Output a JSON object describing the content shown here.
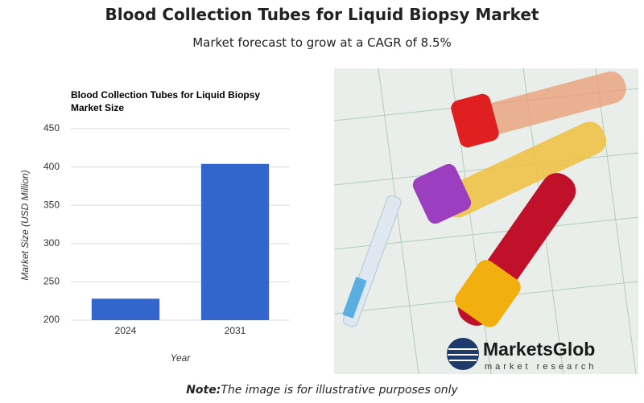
{
  "header": {
    "title": "Blood Collection Tubes for Liquid Biopsy Market",
    "subtitle": "Market forecast to grow at a CAGR of 8.5%"
  },
  "chart_data": {
    "type": "bar",
    "title": "Blood Collection Tubes for Liquid Biopsy Market Size",
    "x_label": "Year",
    "y_label": "Market Size (USD Million)",
    "categories": [
      "2024",
      "2031"
    ],
    "values": [
      228,
      404
    ],
    "color": "#3366cc",
    "ylim": [
      200,
      450
    ],
    "yticks": [
      200,
      250,
      300,
      350,
      400,
      450
    ],
    "grid": true
  },
  "logo": {
    "name": "MarketsGlob",
    "tagline": "market research"
  },
  "note": {
    "label": "Note:",
    "text": "The image is for illustrative purposes only"
  }
}
